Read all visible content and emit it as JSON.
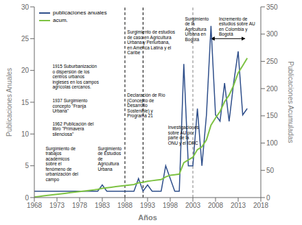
{
  "chart_data": {
    "type": "line",
    "xlabel": "Años",
    "ylabel": "Publicaciones Anuales",
    "y2label": "Publicaciones Acumuladas",
    "x": [
      1968,
      1969,
      1970,
      1971,
      1972,
      1973,
      1974,
      1975,
      1976,
      1977,
      1978,
      1979,
      1980,
      1981,
      1982,
      1983,
      1984,
      1985,
      1986,
      1987,
      1988,
      1989,
      1990,
      1991,
      1992,
      1993,
      1994,
      1995,
      1996,
      1997,
      1998,
      1999,
      2000,
      2001,
      2002,
      2003,
      2004,
      2005,
      2006,
      2007,
      2008,
      2009,
      2010,
      2011,
      2012,
      2013,
      2014,
      2015
    ],
    "series": [
      {
        "name": "publicaciones anuales",
        "color": "#2E4E8A",
        "values": [
          1,
          1,
          1,
          1,
          1,
          1,
          1,
          1,
          1,
          1,
          1,
          1,
          1,
          1,
          1,
          2,
          1,
          1,
          1,
          1,
          1,
          1,
          1,
          3,
          1,
          2,
          1,
          1,
          1,
          5,
          3,
          1,
          1,
          21,
          5,
          5,
          14,
          5,
          13,
          27,
          13,
          12,
          18,
          12,
          18,
          23,
          13,
          14
        ]
      },
      {
        "name": "acum.",
        "color": "#7DC242",
        "axis": "y2",
        "values": [
          1,
          2,
          3,
          4,
          5,
          6,
          7,
          8,
          9,
          10,
          11,
          12,
          13,
          14,
          15,
          17,
          18,
          19,
          20,
          21,
          22,
          23,
          24,
          27,
          28,
          30,
          31,
          32,
          33,
          38,
          41,
          42,
          43,
          64,
          69,
          74,
          88,
          93,
          106,
          133,
          146,
          158,
          176,
          188,
          206,
          229,
          242,
          256
        ]
      }
    ],
    "xlim": [
      1968,
      2018
    ],
    "xticks": [
      1968,
      1973,
      1978,
      1983,
      1988,
      1993,
      1998,
      2003,
      2008,
      2013,
      2018
    ],
    "ylim": [
      0,
      30
    ],
    "yticks": [
      0,
      5,
      10,
      15,
      20,
      25,
      30
    ],
    "y2lim": [
      0,
      350
    ],
    "y2ticks": [
      0,
      50,
      100,
      150,
      200,
      250,
      300,
      350
    ],
    "grid": false,
    "legend": "upper left",
    "annotations": [
      {
        "text": "1915 Suburbanización\no dispersión de los\ncentros urbanos\ningleses en los campos\nagrícolas cercanos."
      },
      {
        "text": "1937 Surgimiento\nconcepto \"Franja\nUrbana\""
      },
      {
        "text": "1962 Publicación del\nlibro \"Primavera\nsilenciosa\""
      },
      {
        "text": "Surgimiento de\ntrabajos\nacadémicos\nsobre el\nfenómeno de\nurbanización del\ncampo"
      },
      {
        "text": "Surgimiento\nde Estudios\nde\nAgricultura\nUrbana"
      },
      {
        "text": "Surgimiento de estudios\nde caso en Agricultura\nUrbana y Periurbana,\nen América Latina y el\nCaribe"
      },
      {
        "text": "Declaración de Río\n(Concepto de\nDesarrollo\nSostenible) y\nPrograma 21"
      },
      {
        "text": "Investigaciones\nsobre AU por\nparte de la\nONU y el IDRC"
      },
      {
        "text": "Surgimiento\nde la\nAgricultura\nUrbana en\nBogotá"
      },
      {
        "text": "Incremento de\nestudios sobre AU\nen Colombia y\nBogotá"
      }
    ],
    "reference_lines": [
      {
        "x": 1988,
        "color": "black"
      },
      {
        "x": 1992,
        "color": "black"
      },
      {
        "x": 2003,
        "color": "gray"
      }
    ],
    "span_arrow": {
      "x": [
        2007,
        2014.5
      ],
      "y": 25
    }
  }
}
